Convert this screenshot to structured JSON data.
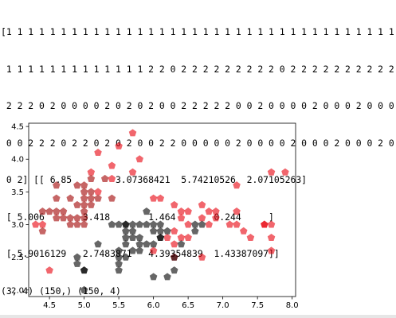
{
  "console": {
    "lines": [
      "[1 1 1 1 1 1 1 1 1 1 1 1 1 1 1 1 1 1 1 1 1 1 1 1 1 1 1 1 1 1 1 1 1 1 1 1 1",
      " 1 1 1 1 1 1 1 1 1 1 1 1 1 2 2 0 2 2 2 2 2 2 2 2 2 0 2 2 2 2 2 2 2 2 2 2 2",
      " 2 2 2 0 2 0 0 0 0 2 0 2 0 2 0 0 2 2 2 2 2 0 0 2 0 0 0 0 2 0 0 0 2 0 0 0 0",
      " 0 0 2 2 2 0 2 2 0 2 0 2 0 0 2 2 0 0 0 0 0 2 0 0 0 0 2 0 0 0 2 0 0 0 2 0 0",
      " 0 2] [[ 6.85        3.07368421  5.74210526  2.07105263]",
      " [ 5.006       3.418       1.464       0.244     ]",
      " [ 5.9016129   2.7483871   4.39354839  1.43387097]]",
      "(3, 4) (150,) (150, 4)"
    ]
  },
  "chart_data": {
    "type": "scatter",
    "xlim": [
      4.2,
      8.05
    ],
    "ylim": [
      1.9,
      4.55
    ],
    "xticks": [
      "4.5",
      "5.0",
      "5.5",
      "6.0",
      "6.5",
      "7.0",
      "7.5",
      "8.0"
    ],
    "yticks": [
      "2.0",
      "2.5",
      "3.0",
      "3.5",
      "4.0",
      "4.5"
    ],
    "marker": "pentagon",
    "grid": false,
    "series": [
      {
        "color": "#e8000b",
        "points": [
          [
            5.8,
            4.0
          ],
          [
            5.2,
            4.1
          ],
          [
            5.5,
            4.2
          ],
          [
            5.7,
            4.4
          ],
          [
            5.7,
            3.8
          ],
          [
            5.4,
            3.9
          ],
          [
            4.4,
            3.0
          ],
          [
            4.3,
            3.0
          ],
          [
            4.5,
            2.3
          ],
          [
            5.4,
            3.7
          ],
          [
            5.1,
            3.8
          ],
          [
            5.2,
            3.5
          ],
          [
            6.0,
            3.4
          ],
          [
            6.1,
            3.4
          ],
          [
            6.3,
            3.3
          ],
          [
            6.7,
            3.3
          ],
          [
            7.2,
            3.6
          ],
          [
            7.7,
            3.8
          ],
          [
            7.9,
            3.8
          ],
          [
            7.7,
            3.0
          ],
          [
            7.6,
            3.0
          ],
          [
            7.4,
            2.8
          ],
          [
            7.3,
            2.9
          ],
          [
            7.2,
            3.0
          ],
          [
            7.1,
            3.0
          ],
          [
            6.9,
            3.2
          ],
          [
            6.8,
            3.2
          ],
          [
            7.2,
            3.2
          ],
          [
            6.5,
            3.2
          ],
          [
            6.4,
            3.2
          ],
          [
            6.7,
            3.1
          ],
          [
            6.9,
            3.1
          ],
          [
            6.8,
            3.0
          ],
          [
            6.5,
            3.0
          ],
          [
            6.4,
            3.1
          ],
          [
            6.3,
            2.9
          ],
          [
            6.5,
            2.8
          ],
          [
            6.4,
            2.8
          ],
          [
            6.3,
            2.7
          ],
          [
            7.7,
            2.8
          ],
          [
            7.7,
            2.6
          ],
          [
            7.6,
            3.0
          ],
          [
            6.0,
            2.6
          ],
          [
            6.3,
            2.5
          ],
          [
            6.7,
            2.5
          ],
          [
            6.2,
            2.8
          ]
        ]
      },
      {
        "color": "#a00000",
        "points": [
          [
            4.6,
            3.6
          ],
          [
            4.6,
            3.4
          ],
          [
            4.6,
            3.2
          ],
          [
            4.8,
            3.4
          ],
          [
            4.9,
            3.6
          ],
          [
            5.0,
            3.6
          ],
          [
            5.0,
            3.5
          ],
          [
            5.0,
            3.4
          ],
          [
            5.1,
            3.5
          ],
          [
            5.1,
            3.4
          ],
          [
            5.2,
            3.4
          ],
          [
            4.9,
            3.3
          ],
          [
            5.0,
            3.3
          ],
          [
            5.0,
            3.2
          ],
          [
            4.8,
            3.1
          ],
          [
            5.0,
            3.0
          ],
          [
            4.8,
            3.0
          ],
          [
            4.7,
            3.2
          ],
          [
            4.4,
            3.2
          ],
          [
            4.4,
            2.9
          ],
          [
            4.6,
            3.1
          ],
          [
            5.4,
            3.4
          ],
          [
            5.3,
            3.7
          ],
          [
            5.1,
            3.7
          ],
          [
            4.5,
            3.2
          ],
          [
            4.9,
            3.0
          ],
          [
            4.9,
            3.1
          ],
          [
            5.0,
            3.1
          ],
          [
            5.1,
            3.3
          ],
          [
            4.7,
            3.1
          ]
        ]
      },
      {
        "color": "#000000",
        "points": [
          [
            4.9,
            2.5
          ],
          [
            4.9,
            2.4
          ],
          [
            5.0,
            2.3
          ],
          [
            5.0,
            2.0
          ],
          [
            5.0,
            2.3
          ],
          [
            5.2,
            2.7
          ],
          [
            5.5,
            2.3
          ],
          [
            5.5,
            2.5
          ],
          [
            5.5,
            2.4
          ],
          [
            5.5,
            2.6
          ],
          [
            5.6,
            2.5
          ],
          [
            5.6,
            2.7
          ],
          [
            5.6,
            2.8
          ],
          [
            5.6,
            2.9
          ],
          [
            5.6,
            3.0
          ],
          [
            5.7,
            2.6
          ],
          [
            5.7,
            2.8
          ],
          [
            5.7,
            2.9
          ],
          [
            5.7,
            3.0
          ],
          [
            5.8,
            2.7
          ],
          [
            5.8,
            2.6
          ],
          [
            5.8,
            2.8
          ],
          [
            5.9,
            3.0
          ],
          [
            5.9,
            3.2
          ],
          [
            6.0,
            2.2
          ],
          [
            6.0,
            2.9
          ],
          [
            6.0,
            3.0
          ],
          [
            6.1,
            2.8
          ],
          [
            6.1,
            2.9
          ],
          [
            6.1,
            3.0
          ],
          [
            6.2,
            2.2
          ],
          [
            6.3,
            2.3
          ],
          [
            6.3,
            2.5
          ],
          [
            5.9,
            2.7
          ],
          [
            6.0,
            2.7
          ],
          [
            5.4,
            3.0
          ],
          [
            5.5,
            3.0
          ],
          [
            5.6,
            3.0
          ],
          [
            5.8,
            3.0
          ],
          [
            6.2,
            2.9
          ],
          [
            6.6,
            2.9
          ],
          [
            6.6,
            3.0
          ],
          [
            6.7,
            3.0
          ],
          [
            6.1,
            2.8
          ],
          [
            6.4,
            2.7
          ]
        ]
      }
    ]
  }
}
